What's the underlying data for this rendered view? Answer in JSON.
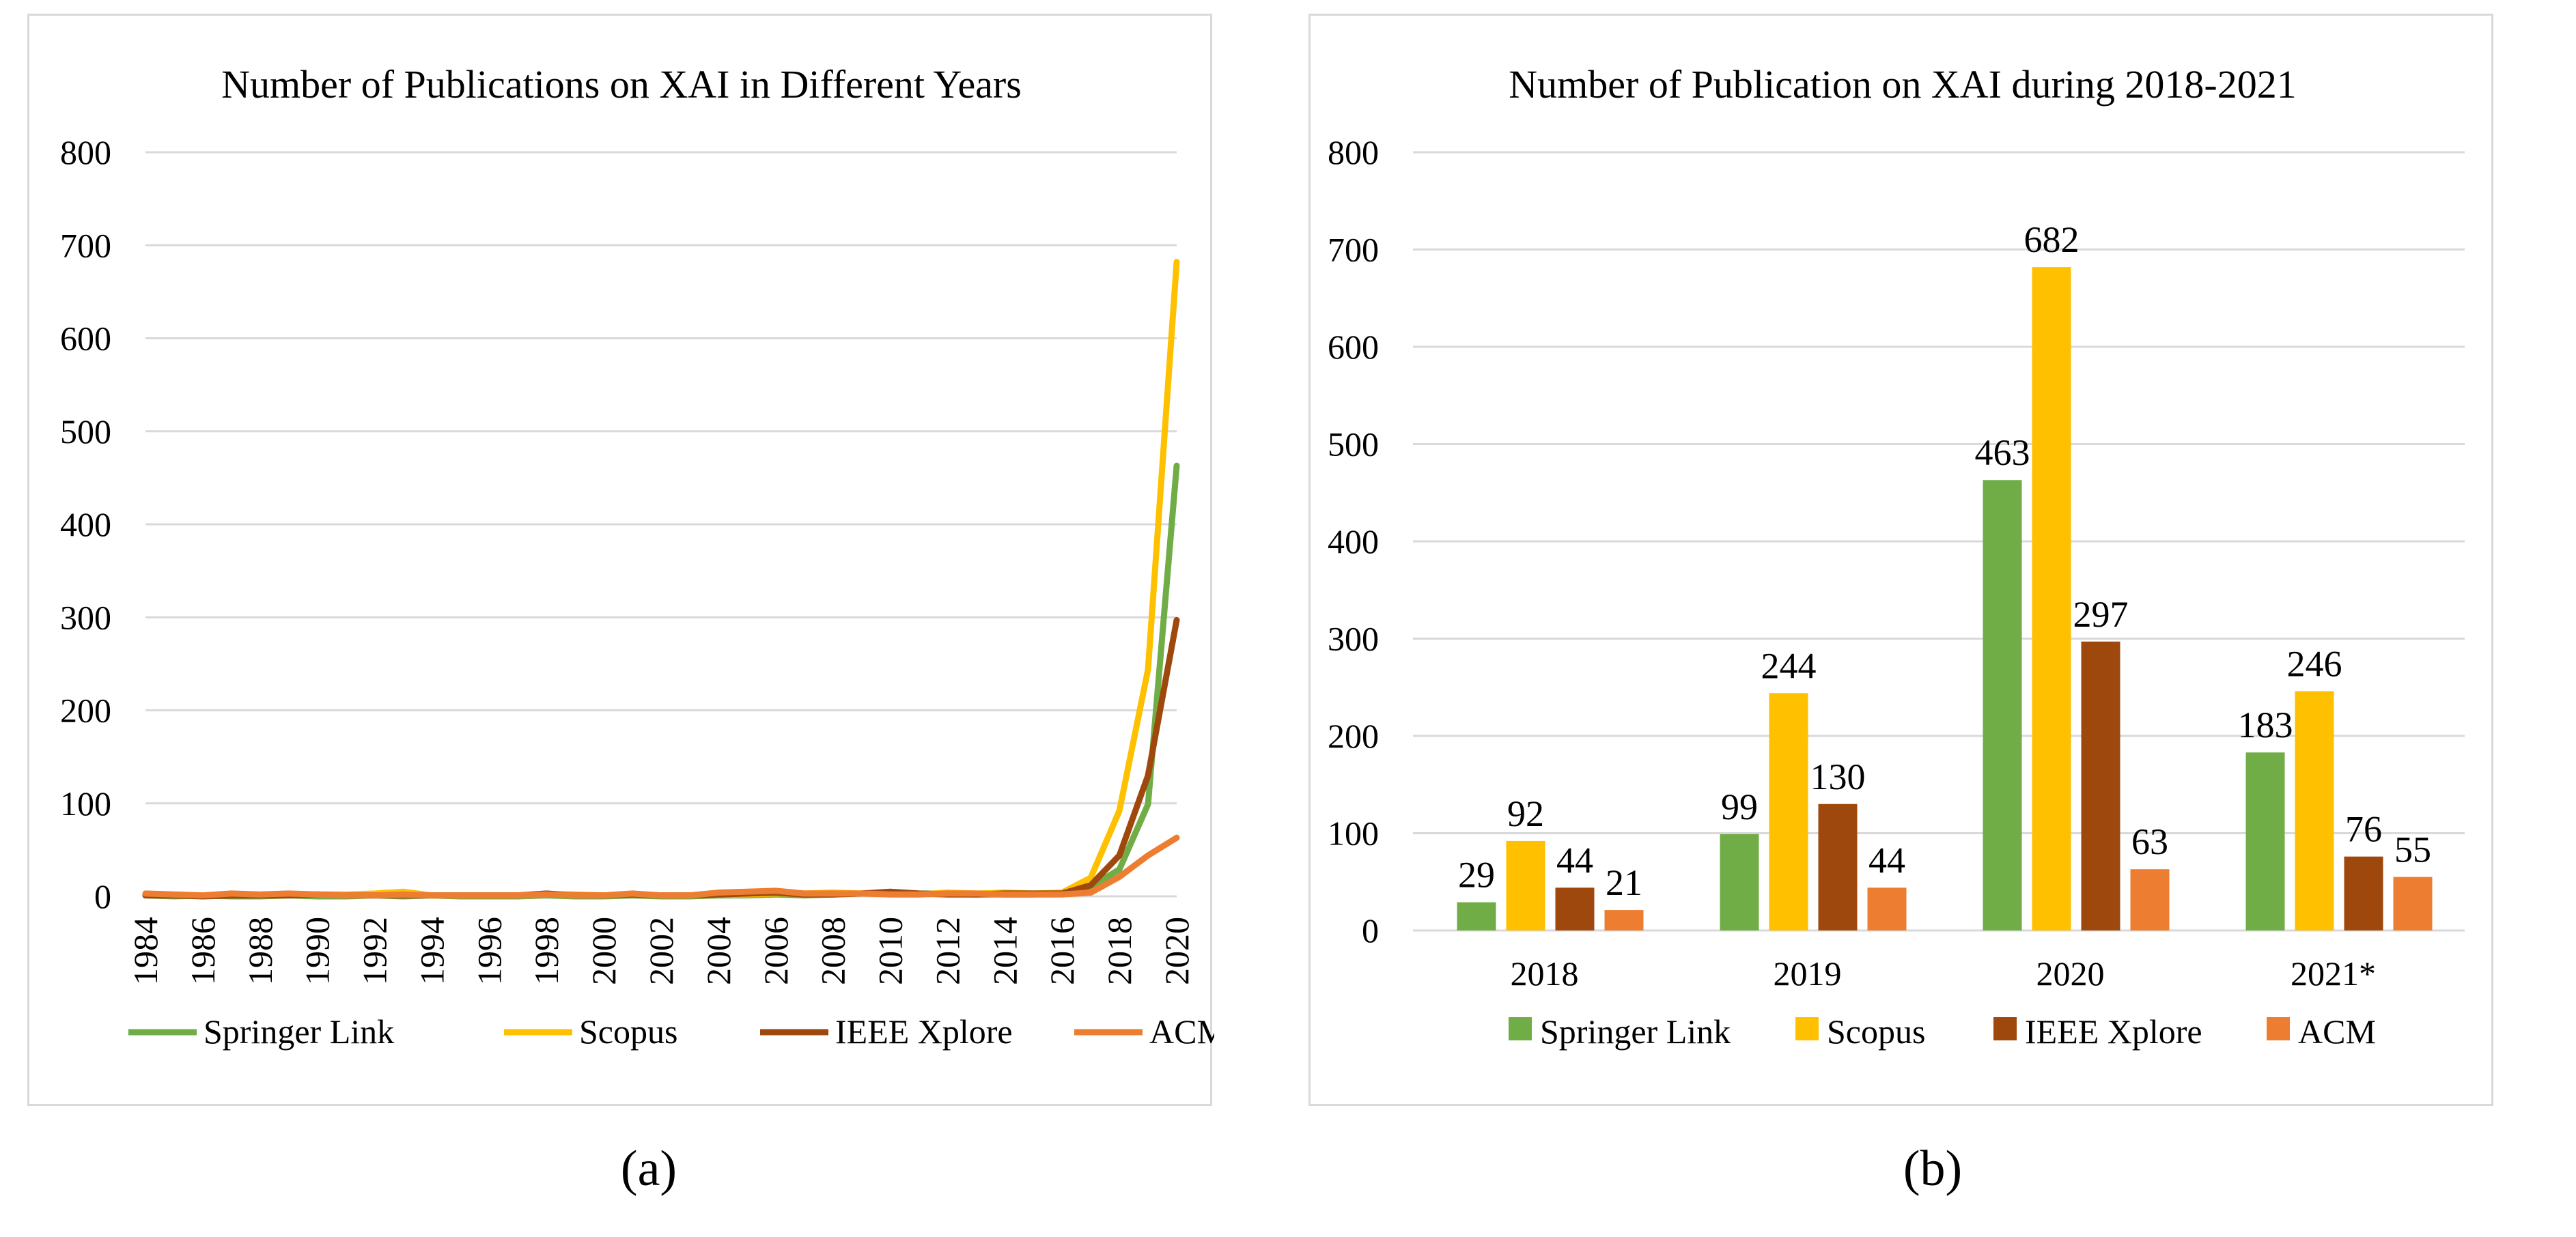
{
  "chart_data": [
    {
      "type": "line",
      "title": "Number of Publications on XAI in Different Years",
      "xlabel": "",
      "ylabel": "",
      "ylim": [
        0,
        800
      ],
      "yticks": [
        "0",
        "100",
        "200",
        "300",
        "400",
        "500",
        "600",
        "700",
        "800"
      ],
      "x": [
        1984,
        1985,
        1986,
        1987,
        1988,
        1989,
        1990,
        1991,
        1992,
        1993,
        1994,
        1995,
        1996,
        1997,
        1998,
        1999,
        2000,
        2001,
        2002,
        2003,
        2004,
        2005,
        2006,
        2007,
        2008,
        2009,
        2010,
        2011,
        2012,
        2013,
        2014,
        2015,
        2016,
        2017,
        2018,
        2019,
        2020
      ],
      "xtick_labels": [
        "1984",
        "1986",
        "1988",
        "1990",
        "1992",
        "1994",
        "1996",
        "1998",
        "2000",
        "2002",
        "2004",
        "2006",
        "2008",
        "2010",
        "2012",
        "2014",
        "2016",
        "2018",
        "2020"
      ],
      "series": [
        {
          "name": "Springer Link",
          "color": "#70ad47",
          "values": [
            1,
            0,
            1,
            0,
            0,
            1,
            0,
            0,
            1,
            0,
            1,
            0,
            0,
            0,
            1,
            0,
            0,
            1,
            0,
            0,
            1,
            1,
            2,
            1,
            2,
            3,
            4,
            3,
            3,
            2,
            2,
            2,
            3,
            10,
            29,
            99,
            463
          ]
        },
        {
          "name": "Scopus",
          "color": "#ffc000",
          "values": [
            2,
            1,
            1,
            2,
            1,
            2,
            2,
            2,
            3,
            5,
            1,
            1,
            1,
            1,
            2,
            2,
            1,
            2,
            1,
            1,
            2,
            2,
            3,
            3,
            4,
            3,
            3,
            2,
            4,
            3,
            4,
            3,
            4,
            20,
            92,
            244,
            682
          ]
        },
        {
          "name": "IEEE Xplore",
          "color": "#9e480e",
          "values": [
            1,
            1,
            0,
            1,
            1,
            1,
            2,
            1,
            1,
            1,
            1,
            1,
            1,
            1,
            3,
            1,
            1,
            2,
            1,
            1,
            2,
            3,
            4,
            2,
            2,
            3,
            5,
            3,
            2,
            2,
            3,
            3,
            3,
            12,
            44,
            130,
            297
          ]
        },
        {
          "name": "ACM",
          "color": "#ed7d31",
          "values": [
            3,
            2,
            1,
            3,
            2,
            3,
            2,
            1,
            1,
            2,
            1,
            1,
            1,
            1,
            2,
            1,
            1,
            3,
            1,
            1,
            4,
            5,
            6,
            3,
            3,
            3,
            2,
            2,
            3,
            3,
            2,
            2,
            2,
            4,
            21,
            44,
            63
          ]
        }
      ],
      "legend": "bottom"
    },
    {
      "type": "bar",
      "title": "Number of Publication on XAI during 2018-2021",
      "xlabel": "",
      "ylabel": "",
      "ylim": [
        0,
        800
      ],
      "yticks": [
        "0",
        "100",
        "200",
        "300",
        "400",
        "500",
        "600",
        "700",
        "800"
      ],
      "categories": [
        "2018",
        "2019",
        "2020",
        "2021*"
      ],
      "series": [
        {
          "name": "Springer Link",
          "color": "#70ad47",
          "values": [
            29,
            99,
            463,
            183
          ],
          "labels": [
            "29",
            "99",
            "463",
            "183"
          ]
        },
        {
          "name": "Scopus",
          "color": "#ffc000",
          "values": [
            92,
            244,
            682,
            246
          ],
          "labels": [
            "92",
            "244",
            "682",
            "246"
          ]
        },
        {
          "name": "IEEE Xplore",
          "color": "#9e480e",
          "values": [
            44,
            130,
            297,
            76
          ],
          "labels": [
            "44",
            "130",
            "297",
            "76"
          ]
        },
        {
          "name": "ACM",
          "color": "#ed7d31",
          "values": [
            21,
            44,
            63,
            55
          ],
          "labels": [
            "21",
            "44",
            "63",
            "55"
          ]
        }
      ],
      "legend": "bottom"
    }
  ],
  "captions": {
    "a": "(a)",
    "b": "(b)"
  }
}
